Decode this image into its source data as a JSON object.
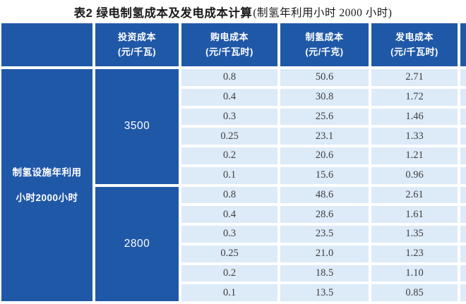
{
  "title": {
    "main": "表2  绿电制氢成本及发电成本计算",
    "note": "(制氢年利用小时 2000 小时)"
  },
  "colors": {
    "header_bg": "#2058a8",
    "cell_bg": "#ddeaf8",
    "header_text": "#ffffff",
    "body_text": "#3d3d3d"
  },
  "table": {
    "row_header": {
      "line1": "制氢设施年利用",
      "line2": "小时2000小时"
    },
    "columns": [
      {
        "name": "投资成本",
        "unit": "(元/千瓦)"
      },
      {
        "name": "购电成本",
        "unit": "(元/千瓦时)"
      },
      {
        "name": "制氢成本",
        "unit": "(元/千克)"
      },
      {
        "name": "发电成本",
        "unit": "(元/千瓦时)"
      }
    ],
    "groups": [
      {
        "investment": "3500",
        "rows": [
          [
            "0.8",
            "50.6",
            "2.71"
          ],
          [
            "0.4",
            "30.8",
            "1.72"
          ],
          [
            "0.3",
            "25.6",
            "1.46"
          ],
          [
            "0.25",
            "23.1",
            "1.33"
          ],
          [
            "0.2",
            "20.6",
            "1.21"
          ],
          [
            "0.1",
            "15.6",
            "0.96"
          ]
        ]
      },
      {
        "investment": "2800",
        "rows": [
          [
            "0.8",
            "48.6",
            "2.61"
          ],
          [
            "0.4",
            "28.6",
            "1.61"
          ],
          [
            "0.3",
            "23.5",
            "1.35"
          ],
          [
            "0.25",
            "21.0",
            "1.23"
          ],
          [
            "0.2",
            "18.5",
            "1.10"
          ],
          [
            "0.1",
            "13.5",
            "0.85"
          ]
        ]
      }
    ]
  }
}
